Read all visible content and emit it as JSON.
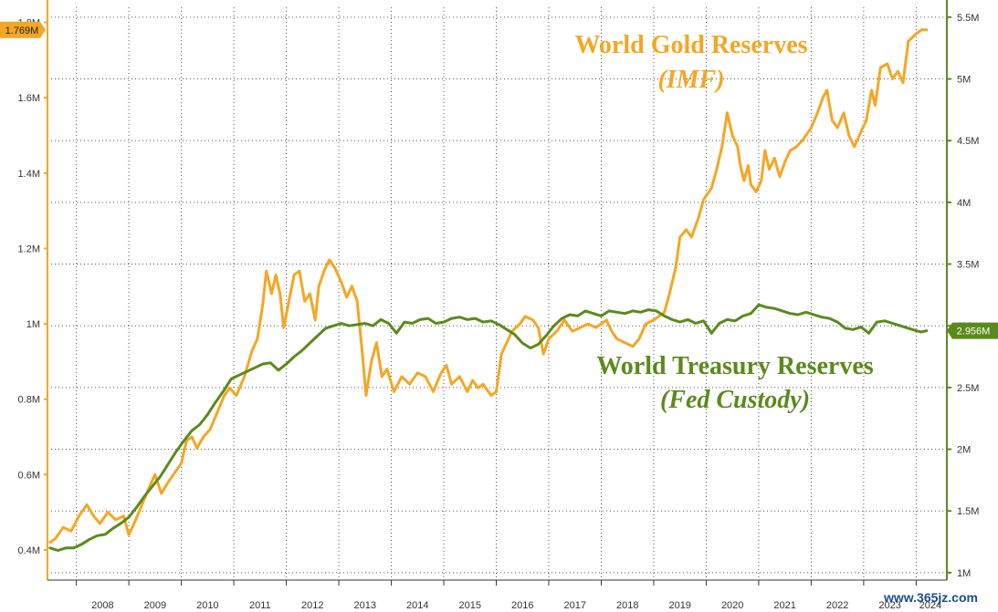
{
  "chart_data": {
    "type": "line",
    "left_axis": {
      "label": "World Gold Reserves",
      "ticks": [
        {
          "value": 0.4,
          "label": "0.4M"
        },
        {
          "value": 0.6,
          "label": "0.6M"
        },
        {
          "value": 0.8,
          "label": "0.8M"
        },
        {
          "value": 1.0,
          "label": "1M"
        },
        {
          "value": 1.2,
          "label": "1.2M"
        },
        {
          "value": 1.4,
          "label": "1.4M"
        },
        {
          "value": 1.6,
          "label": "1.6M"
        },
        {
          "value": 1.8,
          "label": "1.8M"
        }
      ],
      "range": [
        0.32,
        1.84
      ]
    },
    "right_axis": {
      "label": "World Treasury Reserves",
      "ticks": [
        {
          "value": 1.0,
          "label": "1M"
        },
        {
          "value": 1.5,
          "label": "1.5M"
        },
        {
          "value": 2.0,
          "label": "2M"
        },
        {
          "value": 2.5,
          "label": "2.5M"
        },
        {
          "value": 3.0,
          "label": "3M"
        },
        {
          "value": 3.5,
          "label": "3.5M"
        },
        {
          "value": 4.0,
          "label": "4M"
        },
        {
          "value": 4.5,
          "label": "4.5M"
        },
        {
          "value": 5.0,
          "label": "5M"
        },
        {
          "value": 5.5,
          "label": "5.5M"
        }
      ],
      "range": [
        0.94,
        5.58
      ]
    },
    "x_axis": {
      "years": [
        "2008",
        "2009",
        "2010",
        "2011",
        "2012",
        "2013",
        "2014",
        "2015",
        "2016",
        "2017",
        "2018",
        "2019",
        "2020",
        "2021",
        "2022",
        "2023",
        "2024"
      ],
      "range": [
        2007.45,
        2024.55
      ]
    },
    "series": [
      {
        "name": "World Gold Reserves (IMF)",
        "axis": "left",
        "color": "#f5a623",
        "last_value_label": "1.769M",
        "points": [
          [
            2007.5,
            0.42
          ],
          [
            2007.6,
            0.43
          ],
          [
            2007.75,
            0.46
          ],
          [
            2007.9,
            0.45
          ],
          [
            2008.05,
            0.49
          ],
          [
            2008.2,
            0.52
          ],
          [
            2008.33,
            0.49
          ],
          [
            2008.45,
            0.47
          ],
          [
            2008.6,
            0.5
          ],
          [
            2008.75,
            0.48
          ],
          [
            2008.9,
            0.49
          ],
          [
            2009.0,
            0.44
          ],
          [
            2009.1,
            0.47
          ],
          [
            2009.25,
            0.52
          ],
          [
            2009.4,
            0.57
          ],
          [
            2009.5,
            0.6
          ],
          [
            2009.62,
            0.55
          ],
          [
            2009.75,
            0.58
          ],
          [
            2009.9,
            0.61
          ],
          [
            2010.0,
            0.63
          ],
          [
            2010.1,
            0.69
          ],
          [
            2010.2,
            0.7
          ],
          [
            2010.3,
            0.67
          ],
          [
            2010.42,
            0.7
          ],
          [
            2010.55,
            0.72
          ],
          [
            2010.7,
            0.77
          ],
          [
            2010.82,
            0.81
          ],
          [
            2010.92,
            0.83
          ],
          [
            2011.05,
            0.81
          ],
          [
            2011.2,
            0.86
          ],
          [
            2011.35,
            0.93
          ],
          [
            2011.45,
            0.96
          ],
          [
            2011.55,
            1.05
          ],
          [
            2011.62,
            1.14
          ],
          [
            2011.72,
            1.08
          ],
          [
            2011.8,
            1.13
          ],
          [
            2011.88,
            1.08
          ],
          [
            2011.95,
            0.99
          ],
          [
            2012.05,
            1.06
          ],
          [
            2012.15,
            1.13
          ],
          [
            2012.25,
            1.14
          ],
          [
            2012.35,
            1.06
          ],
          [
            2012.45,
            1.08
          ],
          [
            2012.55,
            1.01
          ],
          [
            2012.62,
            1.1
          ],
          [
            2012.72,
            1.14
          ],
          [
            2012.82,
            1.17
          ],
          [
            2012.92,
            1.15
          ],
          [
            2013.05,
            1.11
          ],
          [
            2013.15,
            1.07
          ],
          [
            2013.25,
            1.1
          ],
          [
            2013.35,
            1.06
          ],
          [
            2013.45,
            0.92
          ],
          [
            2013.52,
            0.81
          ],
          [
            2013.62,
            0.9
          ],
          [
            2013.72,
            0.95
          ],
          [
            2013.82,
            0.86
          ],
          [
            2013.92,
            0.88
          ],
          [
            2014.05,
            0.82
          ],
          [
            2014.2,
            0.86
          ],
          [
            2014.35,
            0.84
          ],
          [
            2014.5,
            0.87
          ],
          [
            2014.65,
            0.86
          ],
          [
            2014.8,
            0.82
          ],
          [
            2014.95,
            0.87
          ],
          [
            2015.05,
            0.89
          ],
          [
            2015.15,
            0.84
          ],
          [
            2015.3,
            0.86
          ],
          [
            2015.45,
            0.82
          ],
          [
            2015.55,
            0.85
          ],
          [
            2015.65,
            0.83
          ],
          [
            2015.75,
            0.84
          ],
          [
            2015.9,
            0.81
          ],
          [
            2016.0,
            0.82
          ],
          [
            2016.1,
            0.92
          ],
          [
            2016.2,
            0.95
          ],
          [
            2016.3,
            0.98
          ],
          [
            2016.45,
            1.0
          ],
          [
            2016.55,
            1.02
          ],
          [
            2016.7,
            1.01
          ],
          [
            2016.8,
            0.99
          ],
          [
            2016.9,
            0.92
          ],
          [
            2017.0,
            0.96
          ],
          [
            2017.15,
            0.98
          ],
          [
            2017.3,
            1.01
          ],
          [
            2017.45,
            0.98
          ],
          [
            2017.6,
            0.99
          ],
          [
            2017.75,
            1.0
          ],
          [
            2017.9,
            0.99
          ],
          [
            2018.0,
            1.0
          ],
          [
            2018.1,
            1.01
          ],
          [
            2018.2,
            0.98
          ],
          [
            2018.3,
            0.96
          ],
          [
            2018.45,
            0.95
          ],
          [
            2018.6,
            0.94
          ],
          [
            2018.72,
            0.96
          ],
          [
            2018.85,
            1.0
          ],
          [
            2019.0,
            1.01
          ],
          [
            2019.1,
            1.02
          ],
          [
            2019.2,
            1.03
          ],
          [
            2019.3,
            1.08
          ],
          [
            2019.42,
            1.15
          ],
          [
            2019.5,
            1.23
          ],
          [
            2019.62,
            1.25
          ],
          [
            2019.72,
            1.23
          ],
          [
            2019.85,
            1.28
          ],
          [
            2019.95,
            1.33
          ],
          [
            2020.1,
            1.36
          ],
          [
            2020.2,
            1.41
          ],
          [
            2020.3,
            1.47
          ],
          [
            2020.4,
            1.56
          ],
          [
            2020.5,
            1.5
          ],
          [
            2020.6,
            1.47
          ],
          [
            2020.65,
            1.42
          ],
          [
            2020.72,
            1.38
          ],
          [
            2020.8,
            1.42
          ],
          [
            2020.85,
            1.37
          ],
          [
            2020.95,
            1.35
          ],
          [
            2021.05,
            1.38
          ],
          [
            2021.12,
            1.46
          ],
          [
            2021.2,
            1.41
          ],
          [
            2021.3,
            1.44
          ],
          [
            2021.4,
            1.39
          ],
          [
            2021.5,
            1.43
          ],
          [
            2021.6,
            1.46
          ],
          [
            2021.72,
            1.47
          ],
          [
            2021.85,
            1.49
          ],
          [
            2022.0,
            1.52
          ],
          [
            2022.12,
            1.56
          ],
          [
            2022.22,
            1.6
          ],
          [
            2022.3,
            1.62
          ],
          [
            2022.4,
            1.54
          ],
          [
            2022.5,
            1.52
          ],
          [
            2022.62,
            1.56
          ],
          [
            2022.72,
            1.5
          ],
          [
            2022.82,
            1.47
          ],
          [
            2022.95,
            1.51
          ],
          [
            2023.05,
            1.54
          ],
          [
            2023.15,
            1.62
          ],
          [
            2023.22,
            1.58
          ],
          [
            2023.32,
            1.68
          ],
          [
            2023.45,
            1.69
          ],
          [
            2023.55,
            1.65
          ],
          [
            2023.65,
            1.67
          ],
          [
            2023.75,
            1.64
          ],
          [
            2023.85,
            1.75
          ],
          [
            2024.0,
            1.77
          ],
          [
            2024.1,
            1.78
          ],
          [
            2024.2,
            1.78
          ]
        ]
      },
      {
        "name": "World Treasury Reserves (Fed Custody)",
        "axis": "right",
        "color": "#5a8a1c",
        "last_value_label": "2.956M",
        "points": [
          [
            2007.5,
            1.2
          ],
          [
            2007.65,
            1.18
          ],
          [
            2007.8,
            1.2
          ],
          [
            2007.95,
            1.2
          ],
          [
            2008.1,
            1.23
          ],
          [
            2008.25,
            1.27
          ],
          [
            2008.4,
            1.3
          ],
          [
            2008.55,
            1.31
          ],
          [
            2008.7,
            1.36
          ],
          [
            2008.85,
            1.4
          ],
          [
            2009.0,
            1.45
          ],
          [
            2009.15,
            1.53
          ],
          [
            2009.3,
            1.62
          ],
          [
            2009.45,
            1.7
          ],
          [
            2009.6,
            1.78
          ],
          [
            2009.75,
            1.88
          ],
          [
            2009.9,
            1.98
          ],
          [
            2010.05,
            2.07
          ],
          [
            2010.2,
            2.15
          ],
          [
            2010.35,
            2.2
          ],
          [
            2010.5,
            2.28
          ],
          [
            2010.65,
            2.38
          ],
          [
            2010.8,
            2.47
          ],
          [
            2010.95,
            2.57
          ],
          [
            2011.1,
            2.6
          ],
          [
            2011.25,
            2.63
          ],
          [
            2011.4,
            2.66
          ],
          [
            2011.55,
            2.69
          ],
          [
            2011.7,
            2.7
          ],
          [
            2011.85,
            2.64
          ],
          [
            2012.0,
            2.69
          ],
          [
            2012.15,
            2.75
          ],
          [
            2012.3,
            2.8
          ],
          [
            2012.45,
            2.86
          ],
          [
            2012.6,
            2.92
          ],
          [
            2012.75,
            2.98
          ],
          [
            2012.9,
            3.0
          ],
          [
            2013.05,
            3.02
          ],
          [
            2013.2,
            3.0
          ],
          [
            2013.35,
            3.01
          ],
          [
            2013.5,
            3.02
          ],
          [
            2013.65,
            3.0
          ],
          [
            2013.8,
            3.05
          ],
          [
            2013.95,
            3.02
          ],
          [
            2014.1,
            2.94
          ],
          [
            2014.25,
            3.03
          ],
          [
            2014.4,
            3.02
          ],
          [
            2014.55,
            3.05
          ],
          [
            2014.7,
            3.06
          ],
          [
            2014.85,
            3.02
          ],
          [
            2015.0,
            3.03
          ],
          [
            2015.15,
            3.06
          ],
          [
            2015.3,
            3.07
          ],
          [
            2015.45,
            3.05
          ],
          [
            2015.6,
            3.06
          ],
          [
            2015.75,
            3.03
          ],
          [
            2015.9,
            3.04
          ],
          [
            2016.05,
            3.01
          ],
          [
            2016.2,
            2.97
          ],
          [
            2016.35,
            2.93
          ],
          [
            2016.5,
            2.86
          ],
          [
            2016.65,
            2.82
          ],
          [
            2016.8,
            2.85
          ],
          [
            2016.95,
            2.92
          ],
          [
            2017.1,
            3.0
          ],
          [
            2017.25,
            3.06
          ],
          [
            2017.4,
            3.09
          ],
          [
            2017.55,
            3.08
          ],
          [
            2017.7,
            3.12
          ],
          [
            2017.85,
            3.1
          ],
          [
            2018.0,
            3.08
          ],
          [
            2018.15,
            3.12
          ],
          [
            2018.3,
            3.11
          ],
          [
            2018.45,
            3.1
          ],
          [
            2018.6,
            3.12
          ],
          [
            2018.75,
            3.11
          ],
          [
            2018.9,
            3.13
          ],
          [
            2019.05,
            3.12
          ],
          [
            2019.2,
            3.08
          ],
          [
            2019.35,
            3.05
          ],
          [
            2019.5,
            3.03
          ],
          [
            2019.65,
            3.05
          ],
          [
            2019.8,
            3.02
          ],
          [
            2019.95,
            3.04
          ],
          [
            2020.1,
            2.94
          ],
          [
            2020.25,
            3.02
          ],
          [
            2020.4,
            3.05
          ],
          [
            2020.55,
            3.04
          ],
          [
            2020.7,
            3.08
          ],
          [
            2020.85,
            3.1
          ],
          [
            2021.0,
            3.17
          ],
          [
            2021.15,
            3.15
          ],
          [
            2021.3,
            3.14
          ],
          [
            2021.45,
            3.12
          ],
          [
            2021.6,
            3.1
          ],
          [
            2021.75,
            3.09
          ],
          [
            2021.9,
            3.11
          ],
          [
            2022.05,
            3.09
          ],
          [
            2022.2,
            3.07
          ],
          [
            2022.35,
            3.06
          ],
          [
            2022.5,
            3.03
          ],
          [
            2022.65,
            2.98
          ],
          [
            2022.8,
            2.97
          ],
          [
            2022.95,
            2.99
          ],
          [
            2023.1,
            2.94
          ],
          [
            2023.25,
            3.03
          ],
          [
            2023.4,
            3.04
          ],
          [
            2023.55,
            3.02
          ],
          [
            2023.7,
            3.0
          ],
          [
            2023.85,
            2.98
          ],
          [
            2024.0,
            2.96
          ],
          [
            2024.1,
            2.95
          ],
          [
            2024.2,
            2.96
          ]
        ]
      }
    ],
    "annotations": [
      {
        "line1": "World Gold Reserves",
        "line2": "(IMF)",
        "color": "#f5a623"
      },
      {
        "line1": "World Treasury Reserves",
        "line2": "(Fed Custody)",
        "color": "#5a8a1c"
      }
    ],
    "watermark": "www.365jz.com"
  }
}
